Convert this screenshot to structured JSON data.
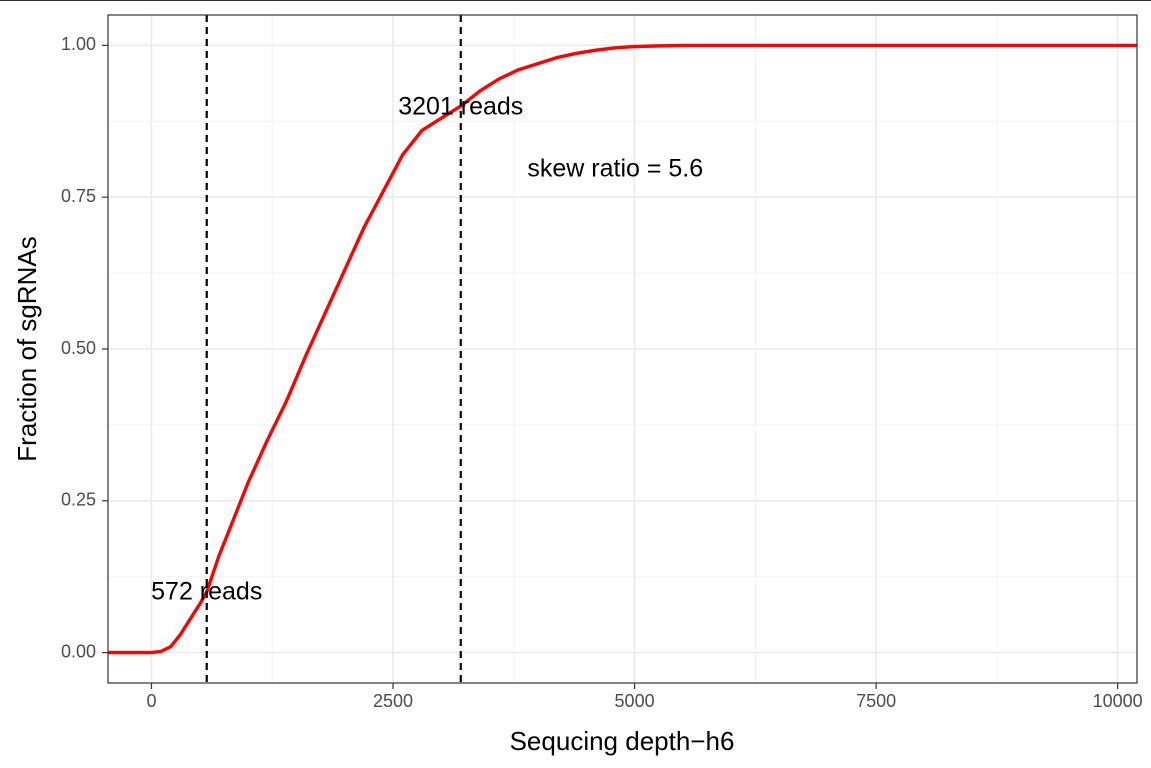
{
  "chart_data": {
    "type": "line",
    "title": "",
    "xlabel": "Sequcing depth−h6",
    "ylabel": "Fraction of sgRNAs",
    "xlim": [
      -450,
      10200
    ],
    "ylim": [
      -0.05,
      1.05
    ],
    "x_ticks": [
      0,
      2500,
      5000,
      7500,
      10000
    ],
    "x_tick_labels": [
      "0",
      "2500",
      "5000",
      "7500",
      "10000"
    ],
    "y_ticks": [
      0,
      0.25,
      0.5,
      0.75,
      1.0
    ],
    "y_tick_labels": [
      "0.00",
      "0.25",
      "0.50",
      "0.75",
      "1.00"
    ],
    "grid": true,
    "legend": "none",
    "series": [
      {
        "color": "#ff0000",
        "x": [
          -450,
          0,
          100,
          200,
          300,
          400,
          500,
          572,
          700,
          800,
          1000,
          1200,
          1400,
          1600,
          1800,
          2000,
          2200,
          2400,
          2600,
          2800,
          3000,
          3201,
          3400,
          3600,
          3800,
          4000,
          4200,
          4400,
          4600,
          4800,
          5000,
          5200,
          5500,
          6000,
          7000,
          8000,
          9000,
          10200
        ],
        "y": [
          0.0,
          0.0,
          0.002,
          0.01,
          0.03,
          0.055,
          0.08,
          0.1,
          0.16,
          0.2,
          0.28,
          0.35,
          0.415,
          0.49,
          0.56,
          0.63,
          0.7,
          0.76,
          0.82,
          0.86,
          0.88,
          0.9,
          0.925,
          0.945,
          0.96,
          0.97,
          0.98,
          0.987,
          0.992,
          0.996,
          0.998,
          0.999,
          1.0,
          1.0,
          1.0,
          1.0,
          1.0,
          1.0
        ]
      }
    ],
    "vlines": [
      572,
      3201
    ],
    "annotations": [
      {
        "text": "572 reads",
        "x": 572,
        "y": 0.098
      },
      {
        "text": "3201 reads",
        "x": 3201,
        "y": 0.897
      },
      {
        "text": "skew ratio = 5.6",
        "x": 4800,
        "y": 0.795
      }
    ]
  }
}
